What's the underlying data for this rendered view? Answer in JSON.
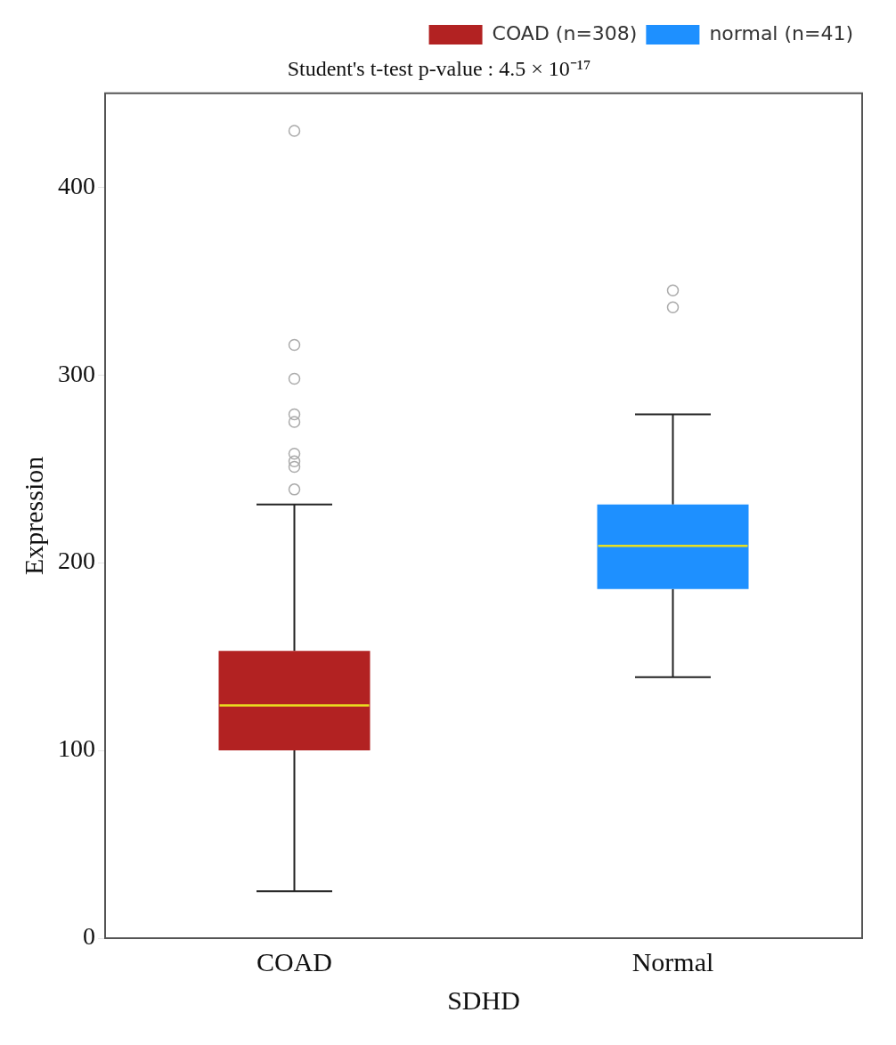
{
  "chart_data": {
    "type": "box",
    "title": "Student's t-test p-value : 4.5 × 10⁻¹⁷",
    "xlabel": "SDHD",
    "ylabel": "Expression",
    "categories": [
      "COAD",
      "Normal"
    ],
    "series": [
      {
        "name": "COAD (n=308)",
        "color": "#b22222",
        "boxes": [
          {
            "low": 25,
            "q1": 100,
            "median": 124,
            "q3": 153,
            "high": 231,
            "outliers": [
              430,
              316,
              298,
              279,
              275,
              258,
              254,
              251,
              239
            ]
          },
          null
        ]
      },
      {
        "name": "normal (n=41)",
        "color": "#1e90ff",
        "boxes": [
          null,
          {
            "low": 139,
            "q1": 186,
            "median": 209,
            "q3": 231,
            "high": 279,
            "outliers": [
              345,
              336
            ]
          }
        ]
      }
    ],
    "ylim": [
      0,
      450
    ],
    "yticks": [
      0,
      100,
      200,
      300,
      400
    ],
    "grid": false,
    "legend": "top right",
    "marker": "circle"
  }
}
